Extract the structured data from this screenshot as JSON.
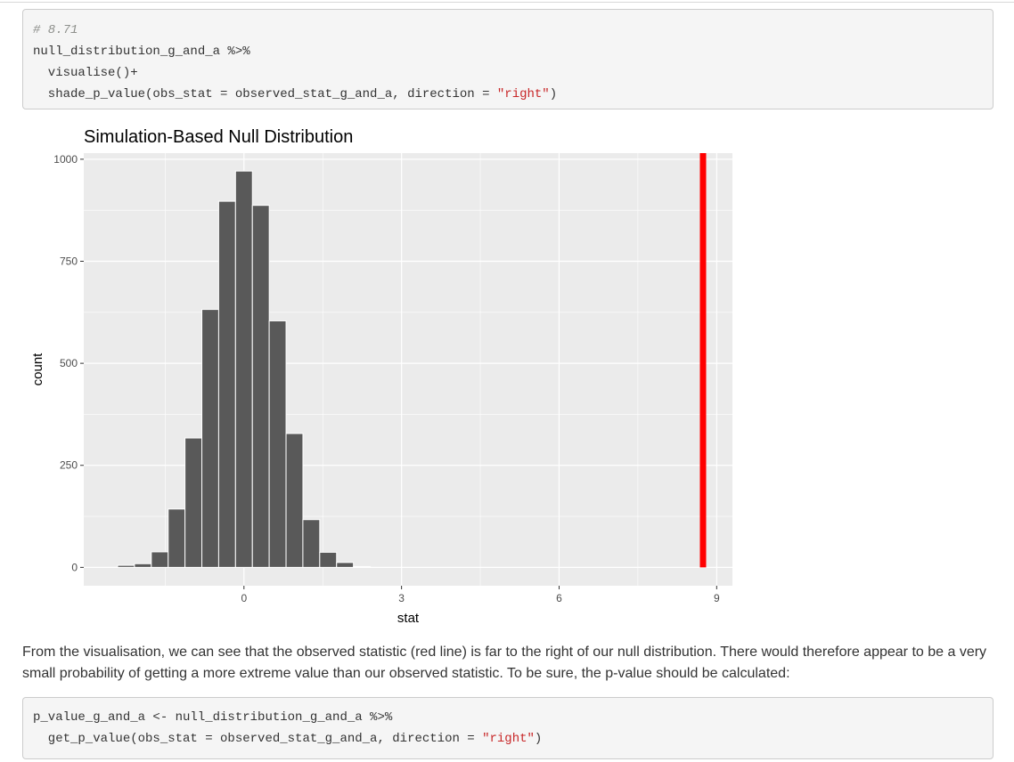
{
  "code_block_1": {
    "comment": "# 8.71",
    "line1": "null_distribution_g_and_a %>%",
    "line2": "  visualise()+",
    "line3_pre": "  shade_p_value(obs_stat = observed_stat_g_and_a, direction = ",
    "line3_str": "\"right\"",
    "line3_post": ")"
  },
  "paragraph": "From the visualisation, we can see that the observed statistic (red line) is far to the right of our null distribution. There would therefore appear to be a very small probability of getting a more extreme value than our observed statistic. To be sure, the p-value should be calculated:",
  "code_block_2": {
    "line1": "p_value_g_and_a <- null_distribution_g_and_a %>%",
    "line2_pre": "  get_p_value(obs_stat = observed_stat_g_and_a, direction = ",
    "line2_str": "\"right\"",
    "line2_post": ")"
  },
  "chart_data": {
    "type": "bar",
    "title": "Simulation-Based Null Distribution",
    "xlabel": "stat",
    "ylabel": "count",
    "xlim": [
      -3.05,
      9.3
    ],
    "ylim": [
      -45,
      1015
    ],
    "x_ticks": [
      0,
      3,
      6,
      9
    ],
    "y_ticks": [
      0,
      250,
      500,
      750,
      1000
    ],
    "bin_width": 0.321,
    "bins": [
      {
        "x": -2.245,
        "count": 5
      },
      {
        "x": -1.924,
        "count": 9
      },
      {
        "x": -1.603,
        "count": 38
      },
      {
        "x": -1.282,
        "count": 143
      },
      {
        "x": -0.962,
        "count": 317
      },
      {
        "x": -0.641,
        "count": 632
      },
      {
        "x": -0.321,
        "count": 897
      },
      {
        "x": 0.0,
        "count": 971
      },
      {
        "x": 0.321,
        "count": 887
      },
      {
        "x": 0.641,
        "count": 604
      },
      {
        "x": 0.962,
        "count": 328
      },
      {
        "x": 1.282,
        "count": 117
      },
      {
        "x": 1.603,
        "count": 37
      },
      {
        "x": 1.924,
        "count": 12
      },
      {
        "x": 2.245,
        "count": 2
      }
    ],
    "observed_stat": 8.74,
    "observed_line_color": "#ff0000",
    "bar_color": "#595959",
    "panel_background": "#ebebeb",
    "grid": true
  }
}
